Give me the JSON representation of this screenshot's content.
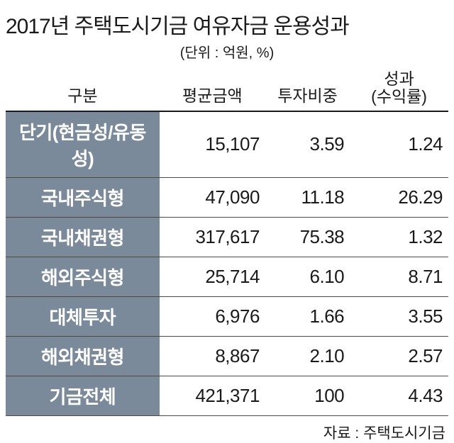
{
  "title": "2017년 주택도시기금 여유자금 운용성과",
  "unit": "(단위 : 억원, %)",
  "headers": {
    "category": "구분",
    "amount": "평균금액",
    "ratio": "투자비중",
    "performance_line1": "성과",
    "performance_line2": "(수익률)"
  },
  "table": {
    "type": "table",
    "columns": [
      "구분",
      "평균금액",
      "투자비중",
      "성과(수익률)"
    ],
    "rows": [
      {
        "category": "단기(현금성/유동성)",
        "amount": "15,107",
        "ratio": "3.59",
        "performance": "1.24"
      },
      {
        "category": "국내주식형",
        "amount": "47,090",
        "ratio": "11.18",
        "performance": "26.29"
      },
      {
        "category": "국내채권형",
        "amount": "317,617",
        "ratio": "75.38",
        "performance": "1.32"
      },
      {
        "category": "해외주식형",
        "amount": "25,714",
        "ratio": "6.10",
        "performance": "8.71"
      },
      {
        "category": "대체투자",
        "amount": "6,976",
        "ratio": "1.66",
        "performance": "3.55"
      },
      {
        "category": "해외채권형",
        "amount": "8,867",
        "ratio": "2.10",
        "performance": "2.57"
      },
      {
        "category": "기금전체",
        "amount": "421,371",
        "ratio": "100",
        "performance": "4.43"
      }
    ],
    "colors": {
      "category_bg": "#7b8a9a",
      "category_text": "#ffffff",
      "body_text": "#1a1a1a",
      "background": "#ffffff",
      "header_border": "#1a1a1a",
      "row_border": "#4a4a4a"
    },
    "fontsize": {
      "title": 30,
      "unit": 20,
      "header": 23,
      "cell": 26,
      "source": 21
    }
  },
  "source": "자료 : 주택도시기금"
}
